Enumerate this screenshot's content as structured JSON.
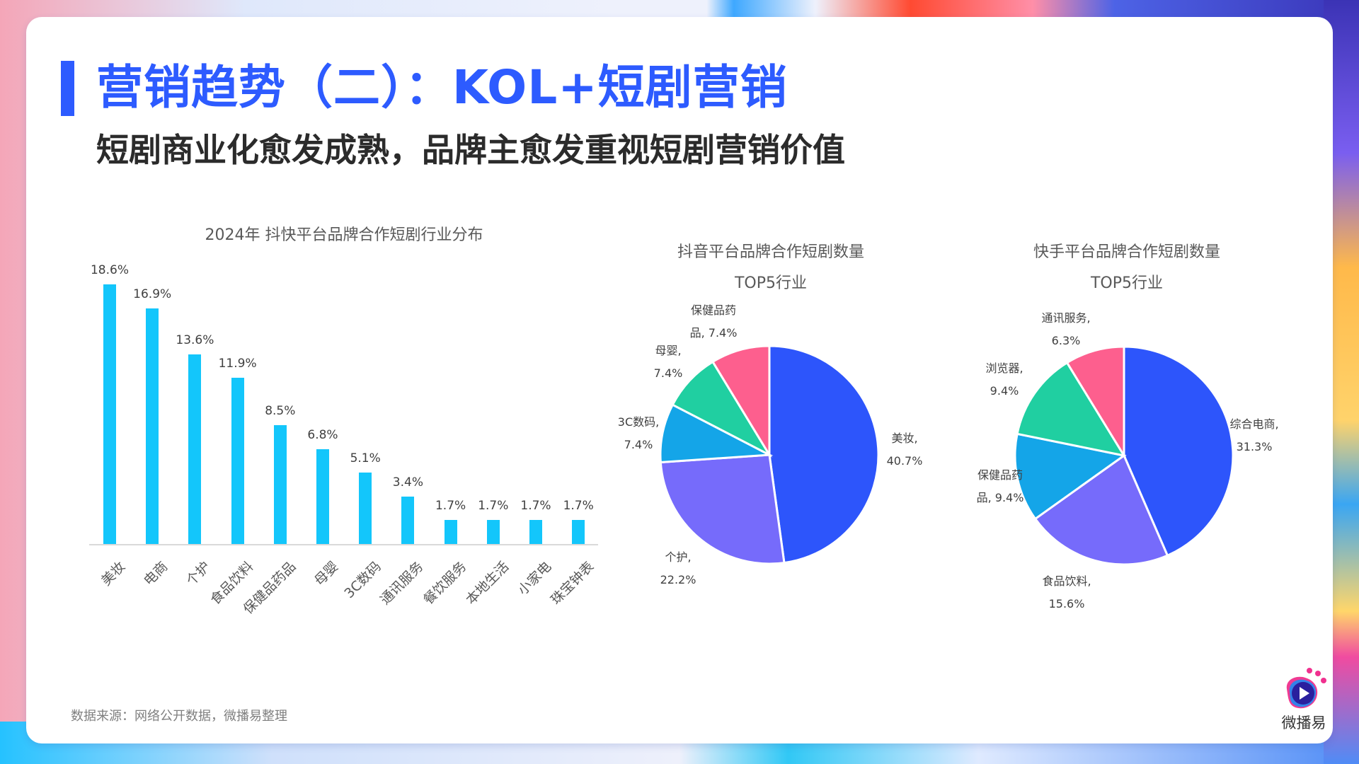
{
  "header": {
    "title": "营销趋势（二）：KOL+短剧营销",
    "subtitle": "短剧商业化愈发成熟，品牌主愈发重视短剧营销价值"
  },
  "footer": {
    "source": "数据来源：网络公开数据，微播易整理",
    "logo_text": "微播易"
  },
  "colors": {
    "accent": "#2d5bff",
    "bar": "#13c6fb",
    "pie": [
      "#2d55fb",
      "#766bfb",
      "#14a5e8",
      "#20cfa1",
      "#fd5f8e"
    ]
  },
  "chart_data": [
    {
      "type": "bar",
      "title": "2024年 抖快平台品牌合作短剧行业分布",
      "categories": [
        "美妆",
        "电商",
        "个护",
        "食品饮料",
        "保健品药品",
        "母婴",
        "3C数码",
        "通讯服务",
        "餐饮服务",
        "本地生活",
        "小家电",
        "珠宝钟表"
      ],
      "values": [
        18.6,
        16.9,
        13.6,
        11.9,
        8.5,
        6.8,
        5.1,
        3.4,
        1.7,
        1.7,
        1.7,
        1.7
      ],
      "value_labels": [
        "18.6%",
        "16.9%",
        "13.6%",
        "11.9%",
        "8.5%",
        "6.8%",
        "5.1%",
        "3.4%",
        "1.7%",
        "1.7%",
        "1.7%",
        "1.7%"
      ],
      "xlabel": "",
      "ylabel": "",
      "unit": "%",
      "grid": false,
      "legend": false
    },
    {
      "type": "pie",
      "title": "抖音平台品牌合作短剧数量",
      "title_line2": "TOP5行业",
      "categories": [
        "美妆",
        "个护",
        "3C数码",
        "母婴",
        "保健品药品"
      ],
      "values": [
        40.7,
        22.2,
        7.4,
        7.4,
        7.4
      ],
      "labels": [
        {
          "line1": "美妆,",
          "line2": "40.7%"
        },
        {
          "line1": "个护,",
          "line2": "22.2%"
        },
        {
          "line1": "3C数码,",
          "line2": "7.4%"
        },
        {
          "line1": "母婴,",
          "line2": "7.4%"
        },
        {
          "line1": "保健品药",
          "line2": "品, 7.4%"
        }
      ],
      "legend": false
    },
    {
      "type": "pie",
      "title": "快手平台品牌合作短剧数量",
      "title_line2": "TOP5行业",
      "categories": [
        "综合电商",
        "食品饮料",
        "保健品药品",
        "浏览器",
        "通讯服务"
      ],
      "values": [
        31.3,
        15.6,
        9.4,
        9.4,
        6.3
      ],
      "labels": [
        {
          "line1": "综合电商,",
          "line2": "31.3%"
        },
        {
          "line1": "食品饮料,",
          "line2": "15.6%"
        },
        {
          "line1": "保健品药",
          "line2": "品, 9.4%"
        },
        {
          "line1": "浏览器,",
          "line2": "9.4%"
        },
        {
          "line1": "通讯服务,",
          "line2": "6.3%"
        }
      ],
      "legend": false
    }
  ]
}
